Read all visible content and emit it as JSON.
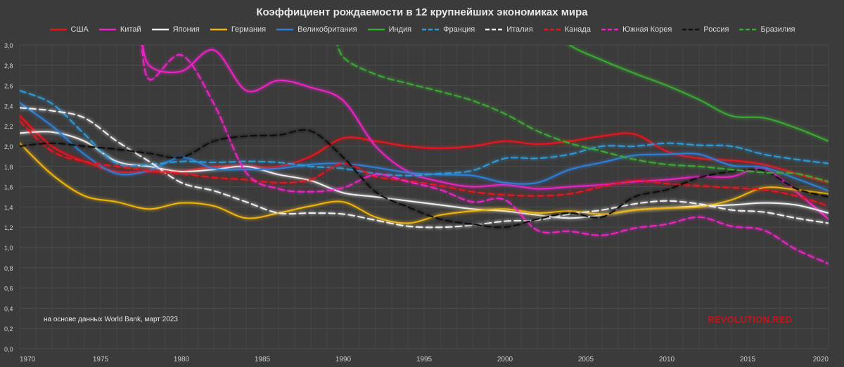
{
  "chart_data": {
    "type": "line",
    "title": "Коэффициент рождаемости в 12 крупнейших экономиках мира",
    "xlabel": "",
    "ylabel": "",
    "xlim": [
      1970,
      2020
    ],
    "ylim": [
      0,
      3.0
    ],
    "x_ticks": [
      "1970",
      "1975",
      "1980",
      "1985",
      "1990",
      "1995",
      "2000",
      "2005",
      "2010",
      "2015",
      "2020"
    ],
    "y_ticks": [
      "0,0",
      "0,2",
      "0,4",
      "0,6",
      "0,8",
      "1,0",
      "1,2",
      "1,4",
      "1,6",
      "1,8",
      "2,0",
      "2,2",
      "2,4",
      "2,6",
      "2,8",
      "3,0"
    ],
    "grid": true,
    "legend": "top",
    "note": "на основе данных World Bank, март 2023",
    "logo": "REVOLUTION.RED",
    "x": [
      1970,
      1972,
      1974,
      1976,
      1978,
      1980,
      1982,
      1984,
      1986,
      1988,
      1990,
      1992,
      1994,
      1996,
      1998,
      2000,
      2002,
      2004,
      2006,
      2008,
      2010,
      2012,
      2014,
      2016,
      2018,
      2020
    ],
    "series": [
      {
        "name": "США",
        "color": "#e8141c",
        "dash": false,
        "values": [
          2.3,
          2.0,
          1.85,
          1.75,
          1.75,
          1.75,
          1.8,
          1.8,
          1.8,
          1.9,
          2.08,
          2.05,
          2.0,
          1.98,
          2.0,
          2.05,
          2.02,
          2.05,
          2.1,
          2.12,
          1.95,
          1.88,
          1.86,
          1.82,
          1.73,
          1.64
        ]
      },
      {
        "name": "Китай",
        "color": "#f021c8",
        "dash": false,
        "values": [
          null,
          null,
          null,
          null,
          2.8,
          2.74,
          2.95,
          2.55,
          2.65,
          2.58,
          2.45,
          2.0,
          1.75,
          1.65,
          1.6,
          1.62,
          1.58,
          1.6,
          1.62,
          1.65,
          1.67,
          1.7,
          1.7,
          1.78,
          1.55,
          1.28
        ]
      },
      {
        "name": "Япония",
        "color": "#f0f0f0",
        "dash": false,
        "values": [
          2.13,
          2.14,
          2.05,
          1.85,
          1.8,
          1.75,
          1.77,
          1.8,
          1.72,
          1.66,
          1.54,
          1.5,
          1.46,
          1.42,
          1.38,
          1.36,
          1.32,
          1.29,
          1.32,
          1.37,
          1.39,
          1.41,
          1.42,
          1.44,
          1.42,
          1.34
        ]
      },
      {
        "name": "Германия",
        "color": "#f0b40a",
        "dash": false,
        "values": [
          2.03,
          1.72,
          1.51,
          1.45,
          1.38,
          1.44,
          1.41,
          1.29,
          1.34,
          1.41,
          1.45,
          1.3,
          1.24,
          1.32,
          1.36,
          1.38,
          1.34,
          1.36,
          1.33,
          1.37,
          1.39,
          1.4,
          1.47,
          1.59,
          1.57,
          1.53
        ]
      },
      {
        "name": "Великобритания",
        "color": "#2f7fd8",
        "dash": false,
        "values": [
          2.43,
          2.2,
          1.92,
          1.73,
          1.76,
          1.89,
          1.78,
          1.77,
          1.78,
          1.82,
          1.83,
          1.79,
          1.74,
          1.72,
          1.71,
          1.64,
          1.64,
          1.77,
          1.84,
          1.91,
          1.92,
          1.92,
          1.81,
          1.79,
          1.68,
          1.56
        ]
      },
      {
        "name": "Индия",
        "color": "#3aaa32",
        "dash": false,
        "values": [
          null,
          null,
          null,
          null,
          null,
          null,
          null,
          null,
          null,
          null,
          null,
          null,
          null,
          null,
          null,
          null,
          null,
          3.0,
          2.85,
          2.72,
          2.6,
          2.46,
          2.3,
          2.28,
          2.18,
          2.05
        ]
      },
      {
        "name": "Франция",
        "color": "#2f9ad8",
        "dash": true,
        "values": [
          2.55,
          2.42,
          2.12,
          1.83,
          1.82,
          1.85,
          1.84,
          1.85,
          1.84,
          1.8,
          1.78,
          1.73,
          1.71,
          1.73,
          1.76,
          1.88,
          1.88,
          1.92,
          2.0,
          2.0,
          2.03,
          2.01,
          2.0,
          1.92,
          1.87,
          1.83
        ]
      },
      {
        "name": "Италия",
        "color": "#f0f0f0",
        "dash": true,
        "values": [
          2.38,
          2.35,
          2.28,
          2.05,
          1.85,
          1.64,
          1.56,
          1.45,
          1.34,
          1.34,
          1.33,
          1.27,
          1.21,
          1.2,
          1.22,
          1.26,
          1.27,
          1.33,
          1.37,
          1.43,
          1.46,
          1.43,
          1.37,
          1.35,
          1.29,
          1.24
        ]
      },
      {
        "name": "Канада",
        "color": "#e8141c",
        "dash": true,
        "values": [
          2.25,
          1.95,
          1.85,
          1.8,
          1.76,
          1.73,
          1.69,
          1.67,
          1.64,
          1.67,
          1.83,
          1.7,
          1.66,
          1.61,
          1.55,
          1.52,
          1.51,
          1.53,
          1.6,
          1.66,
          1.63,
          1.61,
          1.59,
          1.57,
          1.51,
          1.41
        ]
      },
      {
        "name": "Южная Корея",
        "color": "#f021c8",
        "dash": true,
        "values": [
          null,
          null,
          null,
          null,
          2.66,
          2.9,
          2.42,
          1.74,
          1.58,
          1.55,
          1.59,
          1.72,
          1.65,
          1.57,
          1.45,
          1.47,
          1.17,
          1.16,
          1.12,
          1.19,
          1.23,
          1.3,
          1.21,
          1.17,
          0.98,
          0.84
        ]
      },
      {
        "name": "Россия",
        "color": "#101010",
        "dash": true,
        "values": [
          2.0,
          2.03,
          2.0,
          1.97,
          1.93,
          1.89,
          2.05,
          2.1,
          2.11,
          2.15,
          1.89,
          1.55,
          1.4,
          1.28,
          1.23,
          1.2,
          1.28,
          1.34,
          1.3,
          1.5,
          1.57,
          1.69,
          1.75,
          1.76,
          1.58,
          1.5
        ]
      },
      {
        "name": "Бразилия",
        "color": "#3aaa32",
        "dash": true,
        "values": [
          null,
          null,
          null,
          null,
          null,
          null,
          null,
          null,
          null,
          null,
          2.88,
          2.71,
          2.62,
          2.54,
          2.45,
          2.32,
          2.15,
          2.03,
          1.95,
          1.87,
          1.82,
          1.8,
          1.77,
          1.74,
          1.73,
          1.65
        ]
      }
    ]
  }
}
